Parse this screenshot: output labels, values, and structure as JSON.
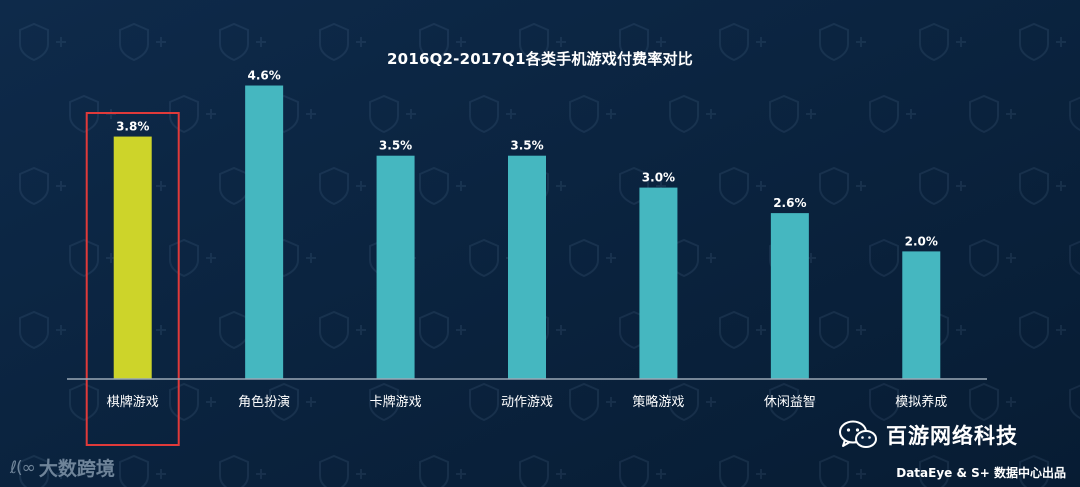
{
  "chart_data": {
    "type": "bar",
    "title": "2016Q2-2017Q1各类手机游戏付费率对比",
    "categories": [
      "棋牌游戏",
      "角色扮演",
      "卡牌游戏",
      "动作游戏",
      "策略游戏",
      "休闲益智",
      "模拟养成"
    ],
    "values": [
      3.8,
      4.6,
      3.5,
      3.5,
      3.0,
      2.6,
      2.0
    ],
    "data_labels": [
      "3.8%",
      "4.6%",
      "3.5%",
      "3.5%",
      "3.0%",
      "2.6%",
      "2.0%"
    ],
    "unit": "%",
    "highlighted_category": "棋牌游戏",
    "ylim": [
      0,
      5
    ],
    "grid": false,
    "colors": {
      "bar": "#45b7c0",
      "highlight_bar": "#cdd42a",
      "highlight_box": "#e03a3a",
      "axis": "#9aa8b6",
      "label": "#ffffff",
      "background": "#0a2340"
    }
  },
  "watermark": {
    "logo_text": "大数跨境",
    "logo_mark": "ℓ(∞"
  },
  "brand": {
    "icon": "wechat-icon",
    "name": "百游网络科技"
  },
  "source": "DataEye & S+ 数据中心出品"
}
